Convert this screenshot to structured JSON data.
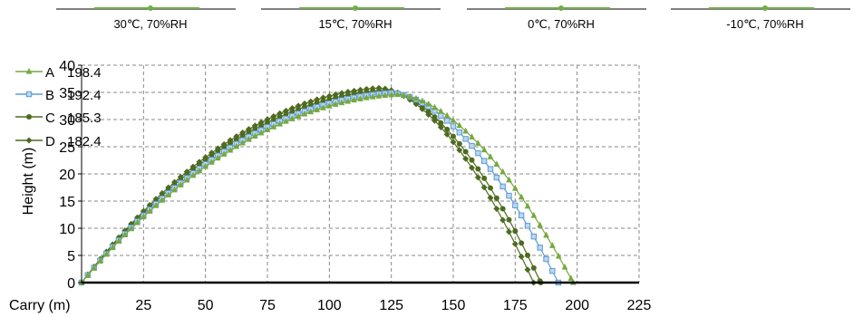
{
  "conditions": [
    {
      "label": "30℃, 70%RH"
    },
    {
      "label": "15℃, 70%RH"
    },
    {
      "label": "0℃, 70%RH"
    },
    {
      "label": "-10℃, 70%RH"
    }
  ],
  "chart_data": {
    "type": "scatter",
    "title": "",
    "xlabel": "Carry (m)",
    "ylabel": "Height (m)",
    "xlim": [
      0,
      225
    ],
    "ylim": [
      0,
      40
    ],
    "x_ticks": [
      25,
      50,
      75,
      100,
      125,
      150,
      175,
      200,
      225
    ],
    "y_ticks": [
      0,
      5,
      10,
      15,
      20,
      25,
      30,
      35,
      40
    ],
    "grid": true,
    "legend_position": "top-left",
    "series": [
      {
        "name": "A",
        "value_label": "198.4",
        "carry": 198.4,
        "apex": [
          127,
          34.6
        ],
        "color": "#77a840",
        "marker": "triangle"
      },
      {
        "name": "B",
        "value_label": "192.4",
        "carry": 192.4,
        "apex": [
          125,
          34.9
        ],
        "color": "#5b9bd5",
        "marker": "square"
      },
      {
        "name": "C",
        "value_label": "185.3",
        "carry": 185.3,
        "apex": [
          122,
          35.4
        ],
        "color": "#4e6b1f",
        "marker": "circle"
      },
      {
        "name": "D",
        "value_label": "182.4",
        "carry": 182.4,
        "apex": [
          120,
          35.8
        ],
        "color": "#4e6b1f",
        "marker": "diamond"
      }
    ]
  }
}
